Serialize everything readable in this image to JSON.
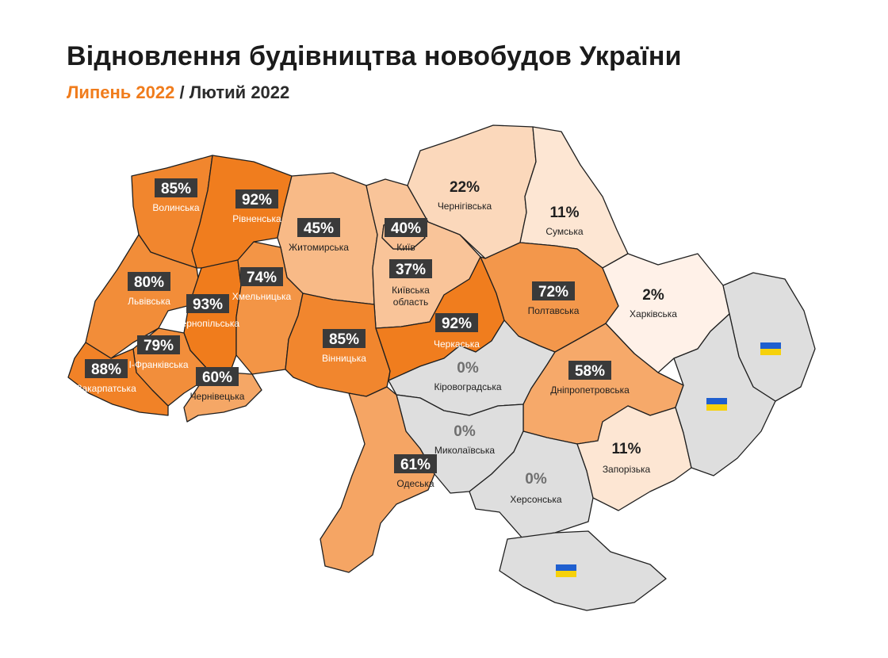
{
  "header": {
    "title": "Відновлення будівництва новобудов України",
    "subtitle_current": "Липень 2022",
    "subtitle_sep": " / ",
    "subtitle_base": "Лютий 2022"
  },
  "colors": {
    "accent": "#f07c1c",
    "occupied": "#dedede",
    "border": "#1f1f1f"
  },
  "regions": [
    {
      "id": "volynska",
      "name": "Волинська",
      "value": "85%",
      "pct": 85
    },
    {
      "id": "rivnenska",
      "name": "Рівненська",
      "value": "92%",
      "pct": 92
    },
    {
      "id": "zhytomyrska",
      "name": "Житомирська",
      "value": "45%",
      "pct": 45
    },
    {
      "id": "kyiv",
      "name": "Київ",
      "value": "40%",
      "pct": 40
    },
    {
      "id": "kyivska",
      "name": "Київська\nобласть",
      "value": "37%",
      "pct": 37
    },
    {
      "id": "chernihivska",
      "name": "Чернігівська",
      "value": "22%",
      "pct": 22
    },
    {
      "id": "sumska",
      "name": "Сумська",
      "value": "11%",
      "pct": 11
    },
    {
      "id": "lvivska",
      "name": "Львівська",
      "value": "80%",
      "pct": 80
    },
    {
      "id": "ternopilska",
      "name": "Тернопільська",
      "value": "93%",
      "pct": 93
    },
    {
      "id": "khmelnytska",
      "name": "Хмельницька",
      "value": "74%",
      "pct": 74
    },
    {
      "id": "ifrankivska",
      "name": "І-Франківська",
      "value": "79%",
      "pct": 79
    },
    {
      "id": "zakarpatska",
      "name": "Закарпатська",
      "value": "88%",
      "pct": 88
    },
    {
      "id": "chernivetska",
      "name": "Чернівецька",
      "value": "60%",
      "pct": 60
    },
    {
      "id": "vinnytska",
      "name": "Вінницька",
      "value": "85%",
      "pct": 85
    },
    {
      "id": "cherkaska",
      "name": "Черкаська",
      "value": "92%",
      "pct": 92
    },
    {
      "id": "poltavska",
      "name": "Полтавська",
      "value": "72%",
      "pct": 72
    },
    {
      "id": "kharkivska",
      "name": "Харківська",
      "value": "2%",
      "pct": 2
    },
    {
      "id": "kirovohradska",
      "name": "Кіровоградська",
      "value": "0%",
      "pct": 0
    },
    {
      "id": "dnipropetrovska",
      "name": "Дніпропетровська",
      "value": "58%",
      "pct": 58
    },
    {
      "id": "mykolaivska",
      "name": "Миколаївська",
      "value": "0%",
      "pct": 0
    },
    {
      "id": "odeska",
      "name": "Одеська",
      "value": "61%",
      "pct": 61
    },
    {
      "id": "khersonska",
      "name": "Херсонська",
      "value": "0%",
      "pct": 0
    },
    {
      "id": "zaporizka",
      "name": "Запорізька",
      "value": "11%",
      "pct": 11
    },
    {
      "id": "luhanska",
      "name": "",
      "value": "",
      "pct": null,
      "flag": true
    },
    {
      "id": "donetska",
      "name": "",
      "value": "",
      "pct": null,
      "flag": true
    },
    {
      "id": "crimea",
      "name": "",
      "value": "",
      "pct": null,
      "flag": true
    }
  ]
}
